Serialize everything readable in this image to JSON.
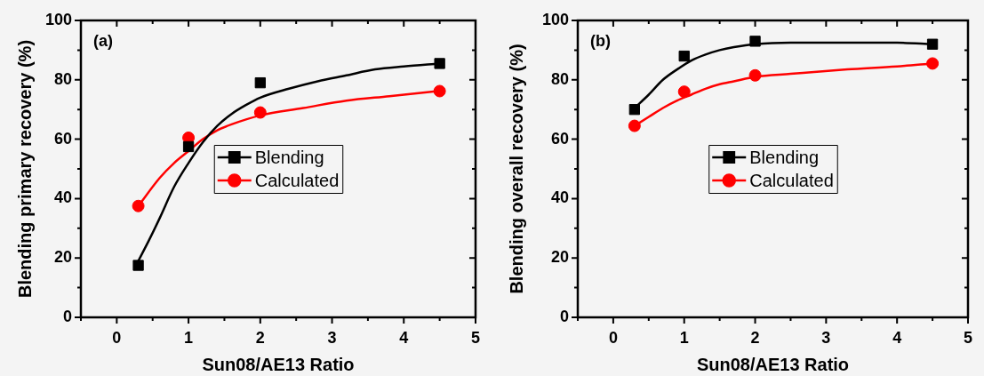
{
  "chart_data": [
    {
      "type": "scatter",
      "annotations": [
        "(a)"
      ],
      "xlabel": "Sun08/AE13 Ratio",
      "ylabel": "Blending primary recovery (%)",
      "xlim": [
        -0.5,
        5
      ],
      "xticks": [
        {
          "value": -0.5,
          "label": null
        },
        0,
        {
          "value": 0.5,
          "label": null
        },
        1,
        {
          "value": 1.5,
          "label": null
        },
        2,
        {
          "value": 2.5,
          "label": null
        },
        3,
        {
          "value": 3.5,
          "label": null
        },
        4,
        {
          "value": 4.5,
          "label": null
        },
        5
      ],
      "ylim": [
        0,
        100
      ],
      "yticks": [
        0,
        {
          "value": 10,
          "label": null
        },
        20,
        {
          "value": 30,
          "label": null
        },
        40,
        {
          "value": 50,
          "label": null
        },
        60,
        {
          "value": 70,
          "label": null
        },
        80,
        {
          "value": 90,
          "label": null
        },
        100
      ],
      "legend": "center",
      "series": [
        {
          "name": "Blending",
          "color": "#000000",
          "marker": "square",
          "x": [
            0.3,
            1,
            2,
            4.5
          ],
          "values": [
            17.5,
            57.5,
            79,
            85.5
          ]
        },
        {
          "name": "Calculated",
          "color": "#ff0000",
          "marker": "circle",
          "x": [
            0.3,
            1,
            2,
            4.5
          ],
          "values": [
            37.5,
            60.5,
            69,
            76.2
          ]
        },
        {
          "type": "line",
          "color": "#000000",
          "x": [
            0.3,
            0.45,
            0.6,
            0.8,
            1.0,
            1.2,
            1.4,
            1.6,
            1.8,
            2.0,
            2.4,
            2.8,
            3.2,
            3.6,
            4.0,
            4.5
          ],
          "values": [
            19,
            26,
            33.5,
            44,
            52,
            59,
            64.5,
            68.5,
            71.5,
            74,
            77,
            79.5,
            81.5,
            83.5,
            84.5,
            85.5
          ]
        },
        {
          "type": "line",
          "color": "#ff0000",
          "x": [
            0.3,
            0.6,
            0.8,
            1.0,
            1.2,
            1.4,
            1.6,
            2.0,
            2.6,
            3.2,
            3.8,
            4.5
          ],
          "values": [
            37.5,
            47,
            52,
            56,
            60,
            63,
            65,
            68,
            70.5,
            73,
            74.5,
            76.3
          ]
        }
      ]
    },
    {
      "type": "scatter",
      "annotations": [
        "(b)"
      ],
      "xlabel": "Sun08/AE13 Ratio",
      "ylabel": "Blending overall recovery (%)",
      "xlim": [
        -0.5,
        5
      ],
      "xticks": [
        {
          "value": -0.5,
          "label": null
        },
        0,
        {
          "value": 0.5,
          "label": null
        },
        1,
        {
          "value": 1.5,
          "label": null
        },
        2,
        {
          "value": 2.5,
          "label": null
        },
        3,
        {
          "value": 3.5,
          "label": null
        },
        4,
        {
          "value": 4.5,
          "label": null
        },
        5
      ],
      "ylim": [
        0,
        100
      ],
      "yticks": [
        0,
        {
          "value": 10,
          "label": null
        },
        20,
        {
          "value": 30,
          "label": null
        },
        40,
        {
          "value": 50,
          "label": null
        },
        60,
        {
          "value": 70,
          "label": null
        },
        80,
        {
          "value": 90,
          "label": null
        },
        100
      ],
      "legend": "center",
      "series": [
        {
          "name": "Blending",
          "color": "#000000",
          "marker": "square",
          "x": [
            0.3,
            1,
            2,
            4.5
          ],
          "values": [
            70,
            88,
            93,
            92
          ]
        },
        {
          "name": "Calculated",
          "color": "#ff0000",
          "marker": "circle",
          "x": [
            0.3,
            1,
            2,
            4.5
          ],
          "values": [
            64.5,
            76,
            81.5,
            85.5
          ]
        },
        {
          "type": "line",
          "color": "#000000",
          "x": [
            0.3,
            0.5,
            0.7,
            0.9,
            1.1,
            1.3,
            1.5,
            1.7,
            2.0,
            2.5,
            3.3,
            4.0,
            4.5
          ],
          "values": [
            70.5,
            75,
            80,
            83.5,
            86.5,
            88.5,
            90,
            91,
            92,
            92.5,
            92.5,
            92.5,
            92
          ]
        },
        {
          "type": "line",
          "color": "#ff0000",
          "x": [
            0.3,
            0.5,
            0.7,
            0.9,
            1.1,
            1.3,
            1.5,
            1.7,
            2.0,
            2.5,
            3.3,
            4.0,
            4.5
          ],
          "values": [
            64.5,
            67.5,
            70.5,
            73,
            75,
            77,
            78.5,
            79.5,
            81,
            82,
            83.5,
            84.5,
            85.5
          ]
        }
      ]
    }
  ]
}
